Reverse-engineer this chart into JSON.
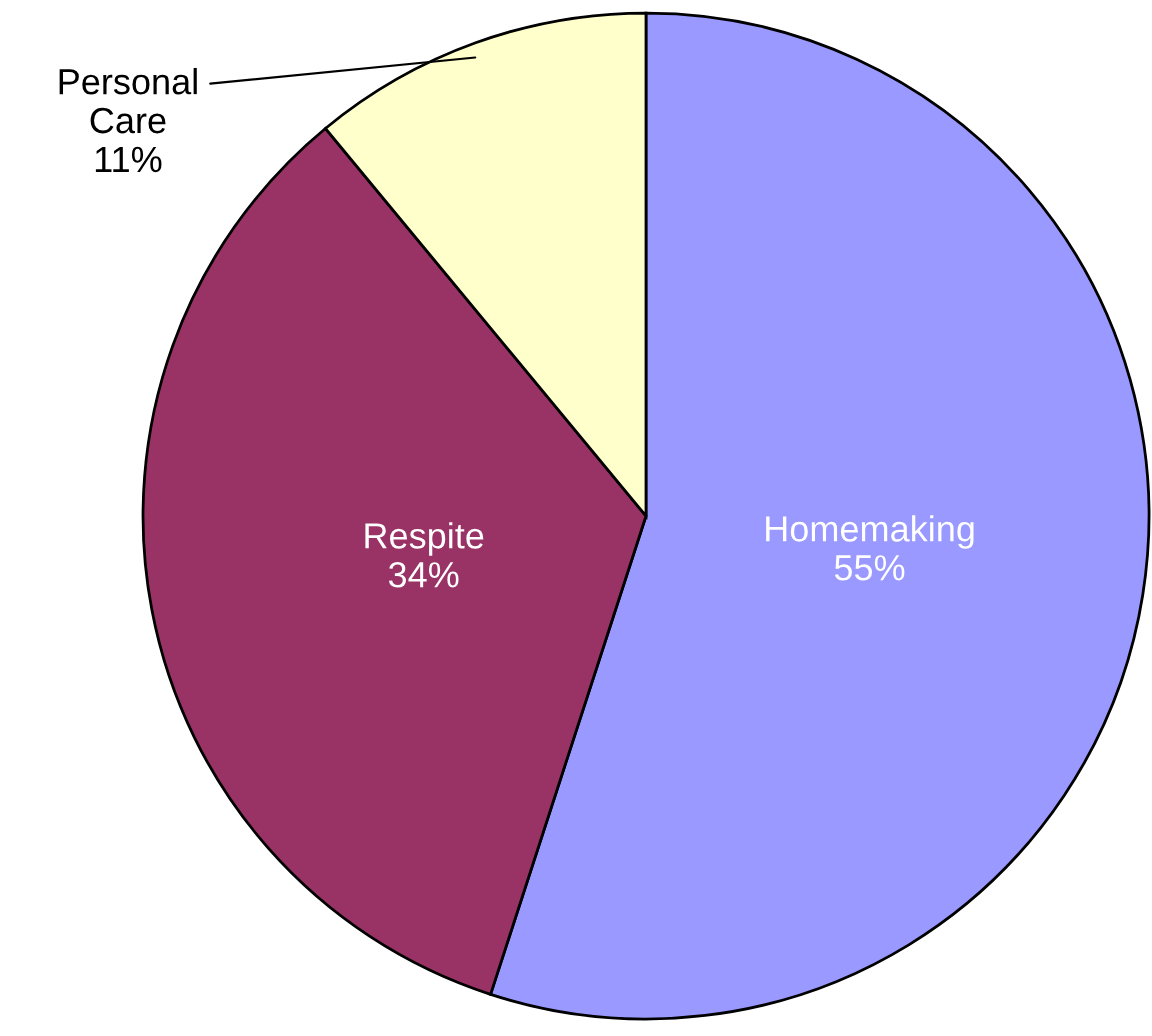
{
  "chart_data": {
    "type": "pie",
    "categories": [
      "Homemaking",
      "Respite",
      "Personal Care"
    ],
    "values": [
      55,
      34,
      11
    ],
    "value_labels": [
      "55%",
      "34%",
      "11%"
    ],
    "colors": [
      "#9999ff",
      "#993366",
      "#ffffcc"
    ]
  }
}
